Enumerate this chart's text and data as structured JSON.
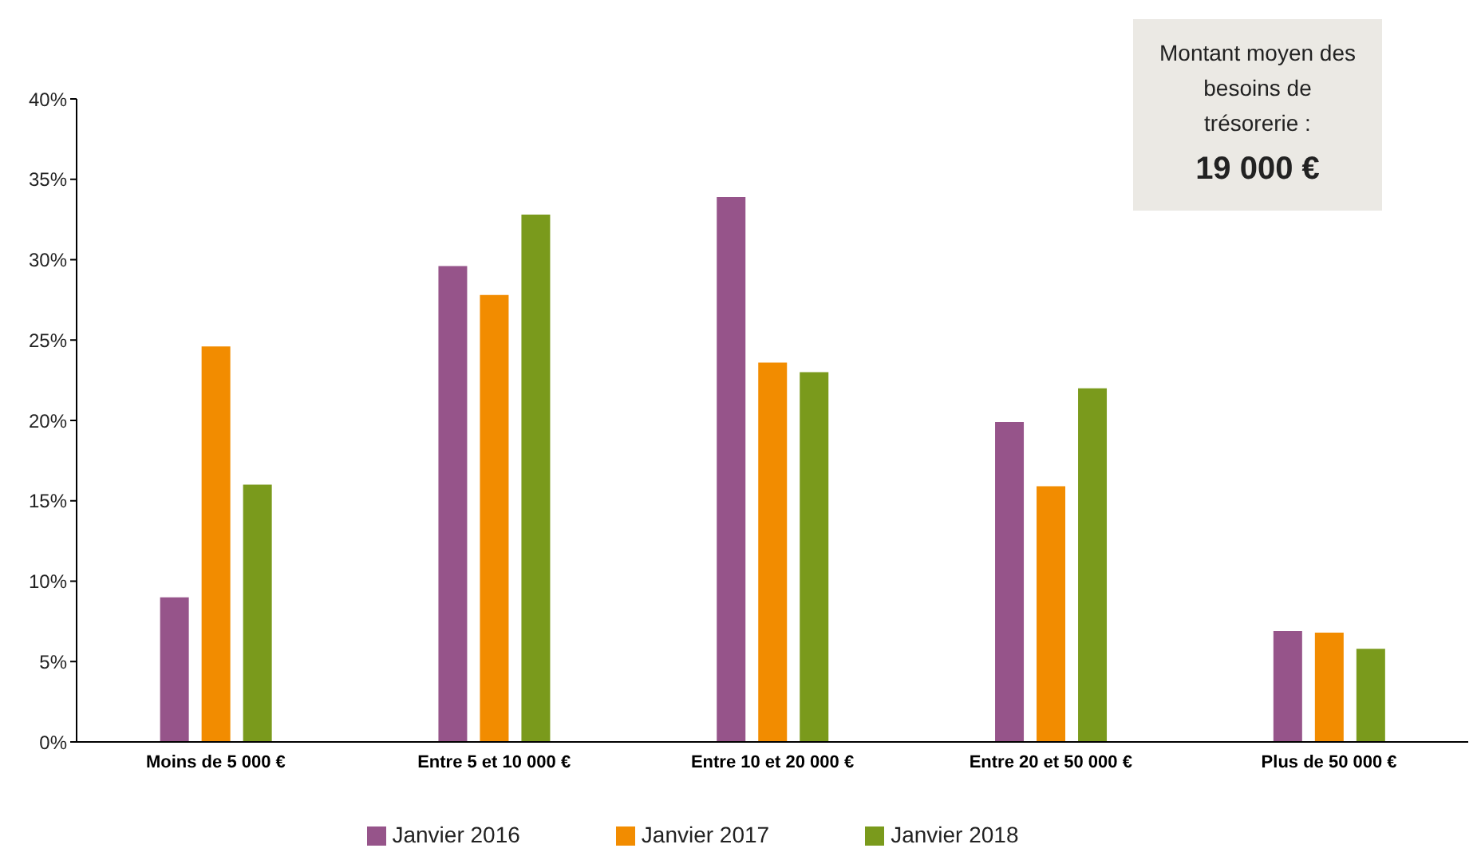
{
  "chart_data": {
    "type": "bar",
    "categories": [
      "Moins de 5 000 €",
      "Entre 5 et 10 000 €",
      "Entre 10 et 20 000 €",
      "Entre 20 et 50 000 €",
      "Plus de 50 000 €"
    ],
    "series": [
      {
        "name": "Janvier 2016",
        "color": "#96548a",
        "values": [
          9.0,
          29.6,
          33.9,
          19.9,
          6.9
        ]
      },
      {
        "name": "Janvier 2017",
        "color": "#f28c00",
        "values": [
          24.6,
          27.8,
          23.6,
          15.9,
          6.8
        ]
      },
      {
        "name": "Janvier 2018",
        "color": "#7a9a1c",
        "values": [
          16.0,
          32.8,
          23.0,
          22.0,
          5.8
        ]
      }
    ],
    "ylim": [
      0,
      40
    ],
    "yticks": [
      {
        "value": 0,
        "label": "0%"
      },
      {
        "value": 5,
        "label": "5%"
      },
      {
        "value": 10,
        "label": "10%"
      },
      {
        "value": 15,
        "label": "15%"
      },
      {
        "value": 20,
        "label": "20%"
      },
      {
        "value": 25,
        "label": "25%"
      },
      {
        "value": 30,
        "label": "30%"
      },
      {
        "value": 35,
        "label": "35%"
      },
      {
        "value": 40,
        "label": "40%"
      }
    ],
    "grid": false,
    "legend": "bottom",
    "annotations": [
      "Montant moyen des besoins de trésorerie :",
      "19 000 €"
    ]
  }
}
